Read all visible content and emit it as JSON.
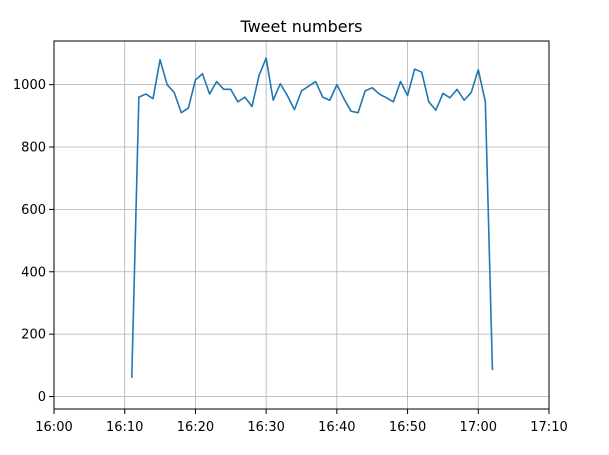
{
  "chart_data": {
    "type": "line",
    "title": "Tweet numbers",
    "xlabel": "",
    "ylabel": "",
    "x_unit": "time HH:MM",
    "xlim": [
      "16:00",
      "17:10"
    ],
    "ylim": [
      -40,
      1140
    ],
    "xticks": [
      "16:00",
      "16:10",
      "16:20",
      "16:30",
      "16:40",
      "16:50",
      "17:00",
      "17:10"
    ],
    "yticks": [
      0,
      200,
      400,
      600,
      800,
      1000
    ],
    "grid": true,
    "legend": "none",
    "series": [
      {
        "color": "#1f77b4",
        "x": [
          "16:11",
          "16:12",
          "16:13",
          "16:14",
          "16:15",
          "16:16",
          "16:17",
          "16:18",
          "16:19",
          "16:20",
          "16:21",
          "16:22",
          "16:23",
          "16:24",
          "16:25",
          "16:26",
          "16:27",
          "16:28",
          "16:29",
          "16:30",
          "16:31",
          "16:32",
          "16:33",
          "16:34",
          "16:35",
          "16:36",
          "16:37",
          "16:38",
          "16:39",
          "16:40",
          "16:41",
          "16:42",
          "16:43",
          "16:44",
          "16:45",
          "16:46",
          "16:47",
          "16:48",
          "16:49",
          "16:50",
          "16:51",
          "16:52",
          "16:53",
          "16:54",
          "16:55",
          "16:56",
          "16:57",
          "16:58",
          "16:59",
          "17:00",
          "17:01",
          "17:02"
        ],
        "y": [
          60,
          960,
          970,
          955,
          1080,
          1000,
          975,
          910,
          925,
          1015,
          1035,
          970,
          1010,
          985,
          985,
          945,
          960,
          930,
          1030,
          1085,
          950,
          1003,
          965,
          920,
          980,
          995,
          1010,
          960,
          950,
          1000,
          955,
          915,
          910,
          980,
          990,
          970,
          958,
          945,
          1010,
          965,
          1050,
          1040,
          945,
          918,
          972,
          958,
          985,
          950,
          975,
          1048,
          945,
          85
        ]
      }
    ]
  }
}
